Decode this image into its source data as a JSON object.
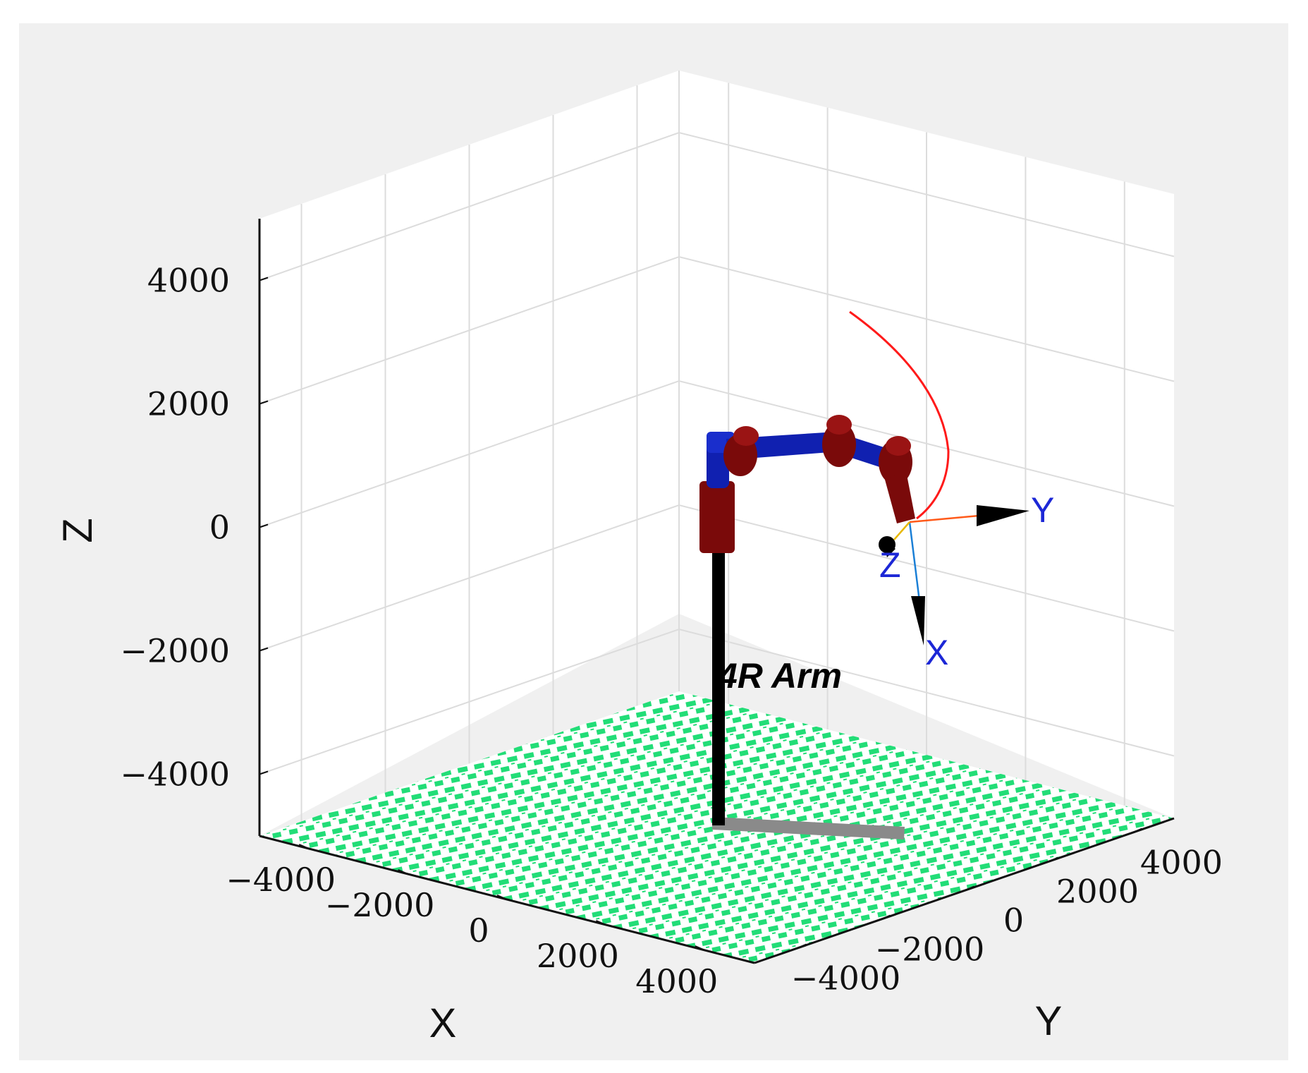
{
  "chart_data": {
    "type": "scatter",
    "projection": "3d",
    "title": "",
    "xlabel": "X",
    "ylabel": "Y",
    "zlabel": "Z",
    "xlim": [
      -5000,
      5000
    ],
    "ylim": [
      -5000,
      5000
    ],
    "zlim": [
      -5000,
      5000
    ],
    "grid": true,
    "x_ticks": [
      -4000,
      -2000,
      0,
      2000,
      4000
    ],
    "y_ticks": [
      -4000,
      -2000,
      0,
      2000,
      4000
    ],
    "z_ticks": [
      -4000,
      -2000,
      0,
      2000,
      4000
    ],
    "x_tick_labels": [
      "−4000",
      "−2000",
      "0",
      "2000",
      "4000"
    ],
    "y_tick_labels": [
      "−4000",
      "−2000",
      "0",
      "2000",
      "4000"
    ],
    "z_tick_labels": [
      "−4000",
      "−2000",
      "0",
      "2000",
      "4000"
    ],
    "robot_name": "4R Arm",
    "end_effector_frame_labels": {
      "x": "X",
      "y": "Y",
      "z": "Z"
    },
    "series": [
      {
        "name": "",
        "kind": "trajectory",
        "color": "#ff1a1a",
        "points": [
          [
            0,
            2000,
            4000
          ],
          [
            600,
            2250,
            3000
          ],
          [
            1300,
            2500,
            1900
          ],
          [
            1900,
            2800,
            1000
          ],
          [
            2400,
            3000,
            500
          ]
        ]
      },
      {
        "name": "",
        "kind": "robot-links",
        "points": [
          [
            0,
            0,
            -5000
          ],
          [
            0,
            0,
            0
          ],
          [
            0,
            0,
            1000
          ],
          [
            0,
            800,
            1500
          ],
          [
            1000,
            1800,
            1000
          ],
          [
            2000,
            2200,
            700
          ],
          [
            2400,
            3000,
            500
          ]
        ]
      }
    ],
    "colors": {
      "floor": "#22dd77",
      "link": "#1020b0",
      "joint": "#7a0a0a",
      "base_column": "#000000",
      "shadow": "#8a8a8a",
      "frame_x": "#1a7fd6",
      "frame_y": "#ff5a1a",
      "frame_z": "#e8b800",
      "axis_text": "#1c27d6"
    }
  }
}
